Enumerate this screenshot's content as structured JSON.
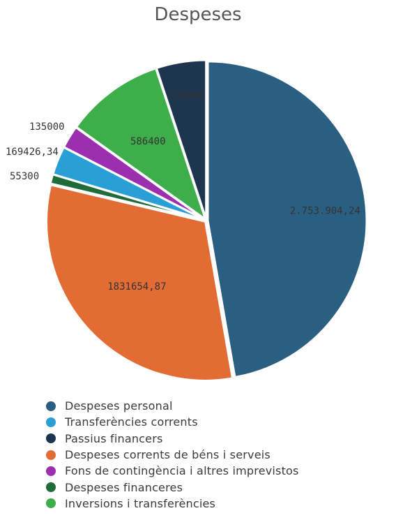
{
  "chart_data": {
    "type": "pie",
    "title": "Despeses",
    "slices": [
      {
        "name": "Despeses personal",
        "value": 2753904.24,
        "label": "2.753.904,24",
        "color": "#2b5f82"
      },
      {
        "name": "Despeses corrents de béns i serveis",
        "value": 1831654.87,
        "label": "1831654,87",
        "color": "#e36c35"
      },
      {
        "name": "Despeses financeres",
        "value": 55300,
        "label": "55300",
        "color": "#1f6b3a"
      },
      {
        "name": "Transferències corrents",
        "value": 169426.34,
        "label": "169426,34",
        "color": "#2a9fd6"
      },
      {
        "name": "Fons de contingència i altres imprevistos",
        "value": 135000,
        "label": "135000",
        "color": "#9b2fae"
      },
      {
        "name": "Inversions i transferències",
        "value": 586400,
        "label": "586400",
        "color": "#3dae4a"
      },
      {
        "name": "Passius financers",
        "value": 295000,
        "label": "295000",
        "color": "#1e3550"
      }
    ],
    "legend": [
      {
        "label": "Despeses personal",
        "color": "#2b5f82"
      },
      {
        "label": "Transferències corrents",
        "color": "#2a9fd6"
      },
      {
        "label": "Passius financers",
        "color": "#1e3550"
      },
      {
        "label": "Despeses corrents de béns i serveis",
        "color": "#e36c35"
      },
      {
        "label": "Fons de contingència i altres imprevistos",
        "color": "#9b2fae"
      },
      {
        "label": "Despeses financeres",
        "color": "#1f6b3a"
      },
      {
        "label": "Inversions i transferències",
        "color": "#3dae4a"
      }
    ],
    "legend_position": "bottom"
  }
}
